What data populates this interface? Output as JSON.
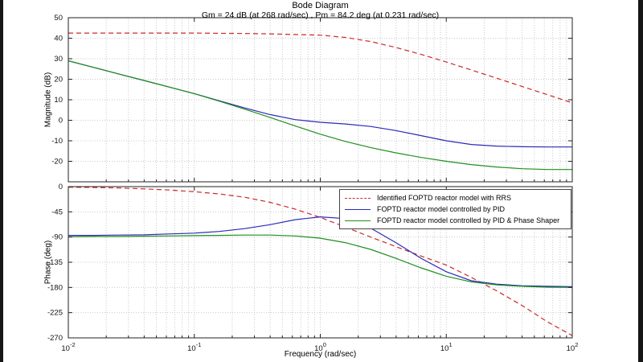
{
  "figure": {
    "title": "Bode Diagram",
    "subtitle": "Gm = 24 dB (at 268 rad/sec) ,  Pm = 84.2 deg (at 0.231 rad/sec)"
  },
  "legend": {
    "items": [
      {
        "label": "Identified FOPTD reactor model with RRS",
        "color": "#cc2929",
        "style": "dashed"
      },
      {
        "label": "FOPTD reactor model controlled by PID",
        "color": "#2b2bb8",
        "style": "solid"
      },
      {
        "label": "FOPTD reactor model controlled by PID & Phase Shaper",
        "color": "#1f8f1f",
        "style": "solid"
      }
    ]
  },
  "chart_data": [
    {
      "type": "line",
      "subplot": "magnitude",
      "title": "Bode Diagram",
      "ylabel": "Magnitude (dB)",
      "xlabel": "",
      "x_scale": "log",
      "xlim": [
        0.01,
        100
      ],
      "ylim": [
        -30,
        50
      ],
      "y_ticks": [
        50,
        40,
        30,
        20,
        10,
        0,
        -10,
        -20
      ],
      "x_tick_exponents": [
        -2,
        -1,
        0,
        1,
        2
      ],
      "grid": true,
      "legend_position": "none",
      "x": [
        0.01,
        0.0158,
        0.0251,
        0.0398,
        0.0631,
        0.1,
        0.158,
        0.251,
        0.398,
        0.631,
        1,
        1.58,
        2.51,
        3.98,
        6.31,
        10,
        15.8,
        25.1,
        39.8,
        63.1,
        100
      ],
      "series": [
        {
          "name": "Identified FOPTD reactor model with RRS",
          "color": "#cc2929",
          "dash": "dashed",
          "values": [
            42.5,
            42.5,
            42.5,
            42.5,
            42.5,
            42.5,
            42.4,
            42.3,
            42.1,
            41.8,
            41.5,
            40.4,
            38.4,
            35.5,
            32.1,
            28.4,
            24.5,
            20.5,
            16.5,
            12.5,
            8.5
          ]
        },
        {
          "name": "FOPTD reactor model controlled by PID",
          "color": "#2b2bb8",
          "dash": "solid",
          "values": [
            29,
            25.8,
            22.6,
            19.4,
            16.2,
            13,
            9.5,
            6,
            2.8,
            0.3,
            -1,
            -1.8,
            -3,
            -5,
            -7.5,
            -10,
            -11.8,
            -12.6,
            -12.9,
            -13,
            -13
          ]
        },
        {
          "name": "FOPTD reactor model controlled by PID & Phase Shaper",
          "color": "#1f8f1f",
          "dash": "solid",
          "values": [
            29,
            25.8,
            22.6,
            19.4,
            16.2,
            13,
            9.3,
            5.4,
            1.4,
            -2.8,
            -6.8,
            -10.3,
            -13.3,
            -15.9,
            -18.1,
            -20,
            -21.6,
            -22.8,
            -23.6,
            -24,
            -24
          ]
        }
      ]
    },
    {
      "type": "line",
      "subplot": "phase",
      "ylabel": "Phase (deg)",
      "xlabel": "Frequency (rad/sec)",
      "x_scale": "log",
      "xlim": [
        0.01,
        100
      ],
      "ylim": [
        -270,
        0
      ],
      "y_ticks": [
        0,
        -45,
        -90,
        -135,
        -180,
        -225,
        -270
      ],
      "x_tick_exponents": [
        -2,
        -1,
        0,
        1,
        2
      ],
      "grid": true,
      "legend_position": "top-right",
      "x": [
        0.01,
        0.0158,
        0.0251,
        0.0398,
        0.0631,
        0.1,
        0.158,
        0.251,
        0.398,
        0.631,
        1,
        1.58,
        2.51,
        3.98,
        6.31,
        10,
        15.8,
        25.1,
        39.8,
        63.1,
        100
      ],
      "series": [
        {
          "name": "Identified FOPTD reactor model with RRS",
          "color": "#cc2929",
          "dash": "dashed",
          "values": [
            -1,
            -1.5,
            -2.5,
            -4,
            -6,
            -9,
            -13,
            -19,
            -28,
            -40,
            -55,
            -72,
            -90,
            -107,
            -124,
            -140,
            -162,
            -186,
            -212,
            -241,
            -266
          ]
        },
        {
          "name": "FOPTD reactor model controlled by PID",
          "color": "#2b2bb8",
          "dash": "solid",
          "values": [
            -87,
            -87,
            -86.5,
            -86,
            -84.5,
            -83,
            -80,
            -75,
            -68,
            -59,
            -54,
            -57,
            -74,
            -100,
            -128,
            -152,
            -168,
            -174,
            -177,
            -178,
            -178.5
          ]
        },
        {
          "name": "FOPTD reactor model controlled by PID & Phase Shaper",
          "color": "#1f8f1f",
          "dash": "solid",
          "values": [
            -89.5,
            -89,
            -89,
            -88.5,
            -88,
            -87.5,
            -87,
            -86.5,
            -86.5,
            -88,
            -92,
            -100,
            -112,
            -128,
            -145,
            -160,
            -170,
            -175.5,
            -178,
            -179.5,
            -180
          ]
        }
      ]
    }
  ]
}
